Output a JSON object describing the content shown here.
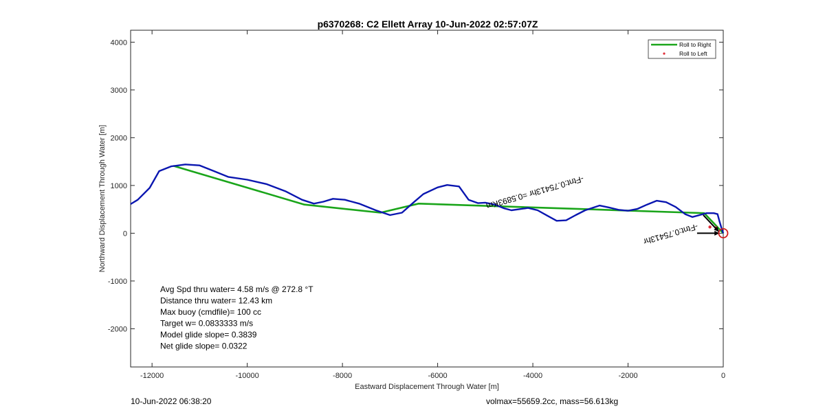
{
  "chart_data": {
    "type": "line",
    "title": "p6370268: C2 Ellett Array 10-Jun-2022 02:57:07Z",
    "xlabel": "Eastward Displacement Through Water [m]",
    "ylabel": "Northward Displacement Through Water [m]",
    "xlim": [
      -12450,
      0
    ],
    "ylim": [
      -2800,
      4250
    ],
    "xticks": [
      -12000,
      -10000,
      -8000,
      -6000,
      -4000,
      -2000,
      0
    ],
    "yticks": [
      -2000,
      -1000,
      0,
      1000,
      2000,
      3000,
      4000
    ],
    "xtick_labels": [
      "-12000",
      "-10000",
      "-8000",
      "-6000",
      "-4000",
      "-2000",
      "0"
    ],
    "ytick_labels": [
      "-2000",
      "-1000",
      "0",
      "1000",
      "2000",
      "3000",
      "4000"
    ],
    "grid": false,
    "legend_position": "top-right",
    "series": [
      {
        "name": "Roll to Right",
        "color": "#1aa51a",
        "style": "line",
        "x": [
          -11550,
          -8800,
          -7200,
          -6400,
          -2800,
          -700,
          -400,
          0
        ],
        "y": [
          1410,
          600,
          430,
          620,
          500,
          430,
          420,
          0
        ]
      },
      {
        "name": "Roll to Left",
        "color": "#e0303a",
        "style": "marker",
        "x": [
          -280,
          -150
        ],
        "y": [
          130,
          115
        ]
      },
      {
        "name": "",
        "color": "#0a16b0",
        "style": "line",
        "x": [
          -12450,
          -12300,
          -12050,
          -11850,
          -11600,
          -11300,
          -11000,
          -10700,
          -10400,
          -10000,
          -9600,
          -9200,
          -8850,
          -8600,
          -8400,
          -8200,
          -7950,
          -7650,
          -7300,
          -7000,
          -6750,
          -6500,
          -6300,
          -6000,
          -5800,
          -5550,
          -5350,
          -5150,
          -5000,
          -4800,
          -4600,
          -4450,
          -4300,
          -4100,
          -3900,
          -3700,
          -3500,
          -3300,
          -3100,
          -2900,
          -2600,
          -2400,
          -2200,
          -2000,
          -1800,
          -1600,
          -1400,
          -1200,
          -1000,
          -800,
          -650,
          -500,
          -350,
          -200,
          -120,
          -80,
          -40,
          0
        ],
        "y": [
          610,
          700,
          950,
          1300,
          1400,
          1440,
          1420,
          1300,
          1180,
          1120,
          1030,
          880,
          700,
          620,
          660,
          720,
          700,
          620,
          480,
          380,
          430,
          650,
          820,
          960,
          1010,
          980,
          700,
          630,
          640,
          600,
          520,
          480,
          500,
          530,
          480,
          370,
          260,
          270,
          380,
          480,
          580,
          540,
          490,
          470,
          510,
          600,
          680,
          650,
          550,
          400,
          340,
          380,
          420,
          420,
          400,
          250,
          120,
          0
        ]
      }
    ],
    "annotations": [
      {
        "type": "text",
        "text": "-Ftnt:0.75413hr =0.5893Km",
        "x": -2950,
        "y": 1200,
        "rotation_deg": 164,
        "color": "#000000"
      },
      {
        "type": "text",
        "text": "-Ftnt:0.75413hr",
        "x": -550,
        "y": 200,
        "rotation_deg": 164,
        "color": "#000000"
      },
      {
        "type": "arrow",
        "x0": -550,
        "y0": 0,
        "x1": -80,
        "y1": 0,
        "color": "#000000"
      },
      {
        "type": "arrow",
        "x0": -420,
        "y0": 380,
        "x1": -90,
        "y1": 30,
        "color": "#000000"
      },
      {
        "type": "circle",
        "x": 0,
        "y": 0,
        "color": "#d11b1b"
      }
    ],
    "info_lines": [
      "Avg Spd thru water=  4.58 m/s @ 272.8 °T",
      "Distance thru water= 12.43 km",
      "Max buoy (cmdfile)= 100 cc",
      "Target w= 0.0833333 m/s",
      "Model glide slope= 0.3839",
      "Net glide slope= 0.0322"
    ]
  },
  "footer": {
    "left": "10-Jun-2022 06:38:20",
    "right": "volmax=55659.2cc, mass=56.613kg"
  }
}
